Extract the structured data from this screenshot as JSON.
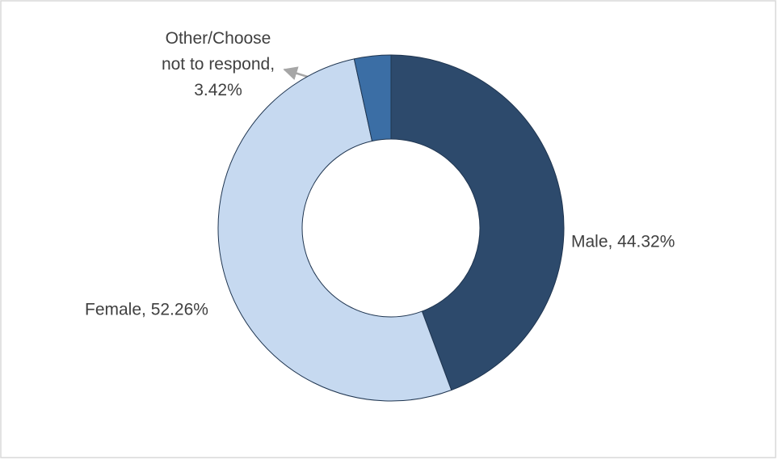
{
  "chart_data": {
    "type": "donut",
    "values": [
      44.32,
      52.26,
      3.42
    ],
    "value_labels": [
      "Male, 44.32%",
      "Female, 52.26%",
      "Other/Choose not to respond, 3.42%"
    ],
    "colors": [
      "#2d4a6c",
      "#c6d9f0",
      "#3b6ea5"
    ]
  }
}
